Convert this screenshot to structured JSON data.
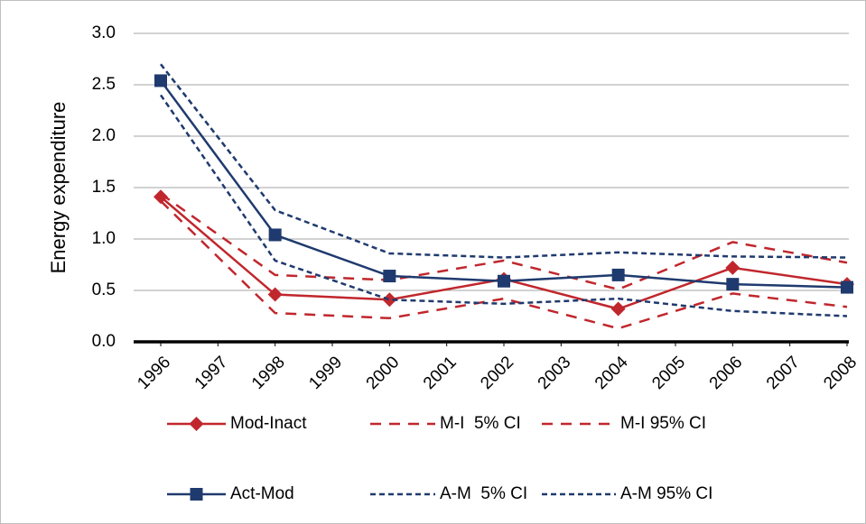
{
  "chart_data": {
    "type": "line",
    "ylabel": "Energy expenditure",
    "x": [
      1996,
      1998,
      2000,
      2002,
      2004,
      2006,
      2008
    ],
    "xlim": [
      1996,
      2008
    ],
    "xticks": [
      1996,
      1997,
      1998,
      1999,
      2000,
      2001,
      2002,
      2003,
      2004,
      2005,
      2006,
      2007,
      2008
    ],
    "ylim": [
      0,
      3
    ],
    "yticks": [
      {
        "value": 0,
        "label": "0.0"
      },
      0.5,
      {
        "value": 1,
        "label": "1.0"
      },
      1.5,
      {
        "value": 2,
        "label": "2.0"
      },
      2.5,
      {
        "value": 3,
        "label": "3.0"
      }
    ],
    "grid": true,
    "legend": "bottom",
    "series": [
      {
        "name": "Mod-Inact",
        "color": "#c0272d",
        "marker": "diamond",
        "dash": "solid",
        "values": [
          1.41,
          0.46,
          0.41,
          0.61,
          0.32,
          0.72,
          0.56
        ]
      },
      {
        "name": "M-I  5% CI",
        "color": "#c0272d",
        "dash": "long",
        "values": [
          1.37,
          0.28,
          0.23,
          0.42,
          0.13,
          0.47,
          0.34
        ]
      },
      {
        "name": "M-I 95% CI",
        "color": "#c0272d",
        "dash": "long",
        "values": [
          1.44,
          0.65,
          0.6,
          0.79,
          0.51,
          0.97,
          0.77
        ]
      },
      {
        "name": "Act-Mod",
        "color": "#1f3a6e",
        "marker": "square",
        "dash": "solid",
        "values": [
          2.54,
          1.04,
          0.64,
          0.59,
          0.65,
          0.56,
          0.53
        ]
      },
      {
        "name": "A-M  5% CI",
        "color": "#1f3a6e",
        "dash": "short",
        "values": [
          2.4,
          0.79,
          0.41,
          0.37,
          0.42,
          0.3,
          0.25
        ]
      },
      {
        "name": "A-M 95% CI",
        "color": "#1f3a6e",
        "dash": "short",
        "values": [
          2.7,
          1.28,
          0.86,
          0.82,
          0.87,
          0.83,
          0.82
        ]
      }
    ]
  }
}
